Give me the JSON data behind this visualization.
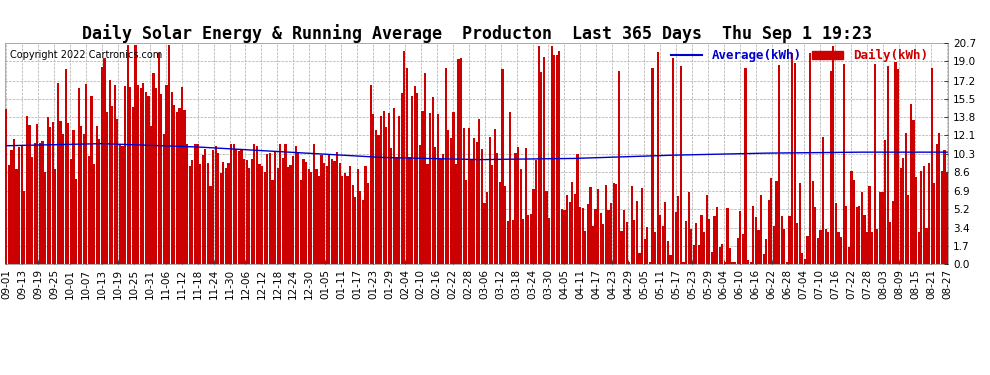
{
  "title": "Daily Solar Energy & Running Average  Producton  Last 365 Days  Thu Sep 1 19:23",
  "copyright": "Copyright 2022 Cartronics.com",
  "legend_average": "Average(kWh)",
  "legend_daily": "Daily(kWh)",
  "ylim": [
    0.0,
    20.7
  ],
  "yticks": [
    0.0,
    1.7,
    3.4,
    5.2,
    6.9,
    8.6,
    10.3,
    12.1,
    13.8,
    15.5,
    17.2,
    19.0,
    20.7
  ],
  "bar_color": "#cc0000",
  "avg_line_color": "#0000cc",
  "background_color": "#ffffff",
  "grid_color": "#aaaaaa",
  "title_fontsize": 12,
  "tick_fontsize": 7.5,
  "legend_fontsize": 9,
  "copyright_fontsize": 7,
  "n_days": 365,
  "x_tick_labels": [
    "09-01",
    "09-13",
    "09-19",
    "09-25",
    "10-01",
    "10-07",
    "10-13",
    "10-19",
    "10-25",
    "10-31",
    "11-06",
    "11-12",
    "11-18",
    "11-24",
    "11-30",
    "12-06",
    "12-12",
    "12-18",
    "12-24",
    "12-30",
    "01-05",
    "01-11",
    "01-17",
    "01-23",
    "01-29",
    "02-04",
    "02-10",
    "02-16",
    "02-22",
    "02-28",
    "03-06",
    "03-12",
    "03-18",
    "03-24",
    "03-30",
    "04-05",
    "04-11",
    "04-17",
    "04-23",
    "04-29",
    "05-05",
    "05-11",
    "05-17",
    "05-23",
    "05-29",
    "06-04",
    "06-10",
    "06-16",
    "06-22",
    "06-28",
    "07-04",
    "07-10",
    "07-16",
    "07-22",
    "07-28",
    "08-03",
    "08-09",
    "08-15",
    "08-21",
    "08-27"
  ]
}
